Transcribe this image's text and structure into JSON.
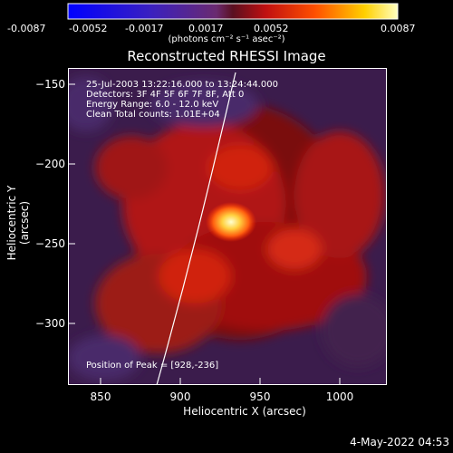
{
  "colorbar": {
    "ticks": [
      "-0.0087",
      "-0.0052",
      "-0.0017",
      "0.0017",
      "0.0052",
      "0.0087"
    ],
    "units_label": "(photons cm⁻² s⁻¹ asec⁻²)"
  },
  "title": "Reconstructed RHESSI Image",
  "annotations": {
    "time_range": "25-Jul-2003 13:22:16.000 to 13:24:44.000",
    "detectors": "Detectors: 3F 4F 5F 6F 7F 8F, Att 0",
    "energy_range": "Energy Range: 6.0 - 12.0 keV",
    "clean_counts": "Clean    Total counts: 1.01E+04",
    "peak": "Position of Peak = [928,-236]"
  },
  "axes": {
    "xlabel": "Heliocentric X (arcsec)",
    "ylabel": "Heliocentric Y (arcsec)",
    "xticks": [
      "850",
      "900",
      "950",
      "1000"
    ],
    "yticks": [
      "−150",
      "−200",
      "−250",
      "−300"
    ]
  },
  "timestamp": "4-May-2022 04:53"
}
